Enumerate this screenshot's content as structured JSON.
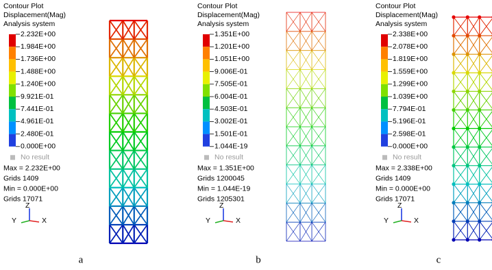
{
  "panels": [
    {
      "title_lines": [
        "Contour Plot",
        "Displacement(Mag)",
        "Analysis system"
      ],
      "legend": [
        "2.232E+00",
        "1.984E+00",
        "1.736E+00",
        "1.488E+00",
        "1.240E+00",
        "9.921E-01",
        "7.441E-01",
        "4.961E-01",
        "2.480E-01",
        "0.000E+00"
      ],
      "no_result": "No result",
      "info": [
        "Max = 2.232E+00",
        "Grids 1409",
        "Min = 0.000E+00",
        "Grids 17071"
      ],
      "axes": [
        "Z",
        "Y",
        "X"
      ],
      "caption": "a"
    },
    {
      "title_lines": [
        "Contour Plot",
        "Displacement(Mag)",
        "Analysis system"
      ],
      "legend": [
        "1.351E+00",
        "1.201E+00",
        "1.051E+00",
        "9.006E-01",
        "7.505E-01",
        "6.004E-01",
        "4.503E-01",
        "3.002E-01",
        "1.501E-01",
        "1.044E-19"
      ],
      "no_result": "No result",
      "info": [
        "Max = 1.351E+00",
        "Grids 1200045",
        "Min = 1.044E-19",
        "Grids 1205301"
      ],
      "axes": [
        "Z",
        "Y",
        "X"
      ],
      "caption": "b"
    },
    {
      "title_lines": [
        "Contour Plot",
        "Displacement(Mag)",
        "Analysis system"
      ],
      "legend": [
        "2.338E+00",
        "2.078E+00",
        "1.819E+00",
        "1.559E+00",
        "1.299E+00",
        "1.039E+00",
        "7.794E-01",
        "5.196E-01",
        "2.598E-01",
        "0.000E+00"
      ],
      "no_result": "No result",
      "info": [
        "Max = 2.338E+00",
        "Grids 1409",
        "Min = 0.000E+00",
        "Grids 17071"
      ],
      "axes": [
        "Z",
        "Y",
        "X"
      ],
      "caption": "c"
    }
  ]
}
